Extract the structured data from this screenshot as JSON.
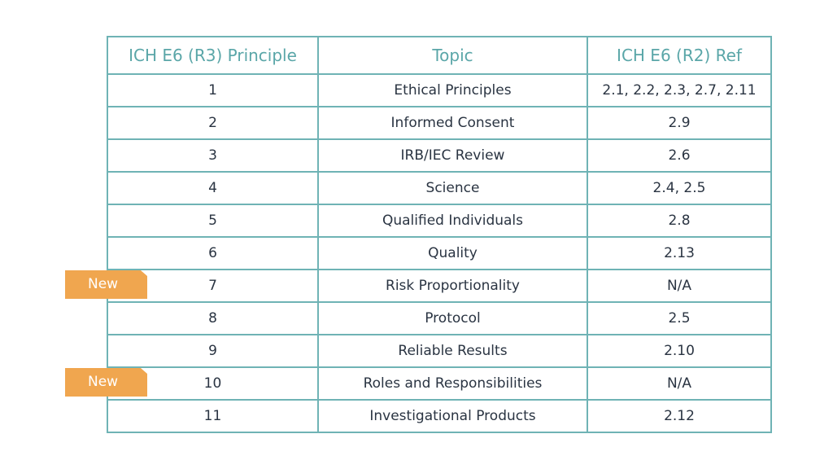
{
  "table": {
    "headers": [
      "ICH E6 (R3) Principle",
      "Topic",
      "ICH E6 (R2) Ref"
    ],
    "rows": [
      {
        "principle": "1",
        "topic": "Ethical Principles",
        "ref": "2.1, 2.2, 2.3, 2.7, 2.11"
      },
      {
        "principle": "2",
        "topic": "Informed Consent",
        "ref": "2.9"
      },
      {
        "principle": "3",
        "topic": "IRB/IEC Review",
        "ref": "2.6"
      },
      {
        "principle": "4",
        "topic": "Science",
        "ref": "2.4, 2.5"
      },
      {
        "principle": "5",
        "topic": "Qualified Individuals",
        "ref": "2.8"
      },
      {
        "principle": "6",
        "topic": "Quality",
        "ref": "2.13"
      },
      {
        "principle": "7",
        "topic": "Risk Proportionality",
        "ref": "N/A"
      },
      {
        "principle": "8",
        "topic": "Protocol",
        "ref": "2.5"
      },
      {
        "principle": "9",
        "topic": "Reliable Results",
        "ref": "2.10"
      },
      {
        "principle": "10",
        "topic": "Roles and Responsibilities",
        "ref": "N/A"
      },
      {
        "principle": "11",
        "topic": "Investigational Products",
        "ref": "2.12"
      }
    ]
  },
  "badges": [
    {
      "label": "New",
      "row": "7"
    },
    {
      "label": "New",
      "row": "10"
    }
  ],
  "colors": {
    "border": "#6fb3b5",
    "header_text": "#5aa6a8",
    "body_text": "#2a3442",
    "badge": "#f0a64f"
  }
}
